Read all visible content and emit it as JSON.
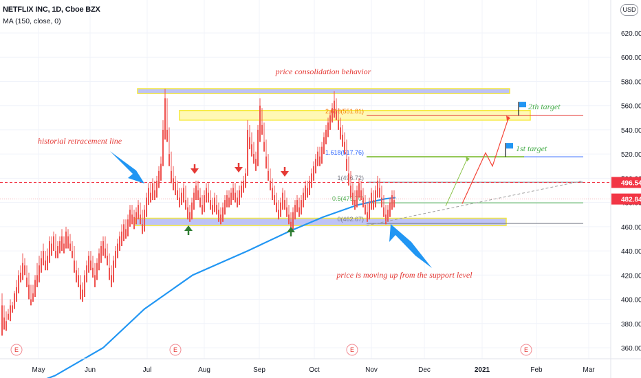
{
  "header": {
    "title": "NETFLIX INC, 1D, Cboe BZX",
    "indicator": "MA (150, close, 0)",
    "currency_button": "USD"
  },
  "chart_data": {
    "type": "candlestick",
    "price_axis": {
      "min": 350,
      "max": 630,
      "ticks": [
        "360.00",
        "380.00",
        "400.00",
        "420.00",
        "440.00",
        "460.00",
        "480.00",
        "500.00",
        "520.00",
        "540.00",
        "560.00",
        "580.00",
        "600.00",
        "620.00"
      ],
      "tick_values": [
        360,
        380,
        400,
        420,
        440,
        460,
        480,
        500,
        520,
        540,
        560,
        580,
        600,
        620
      ]
    },
    "time_axis": {
      "labels": [
        "May",
        "Jun",
        "Jul",
        "Aug",
        "Sep",
        "Oct",
        "Nov",
        "Dec",
        "2021",
        "Feb",
        "Mar"
      ],
      "bold_labels": [
        "2021"
      ]
    },
    "price_badges": [
      {
        "label": "496.54",
        "value": 496.54,
        "color": "#f23645"
      },
      {
        "label": "482.84",
        "value": 482.84,
        "color": "#f23645"
      }
    ],
    "fib_levels": [
      {
        "label": "2.618(551.81)",
        "value": 551.81,
        "color": "#f57c00"
      },
      {
        "label": "1.618(517.76)",
        "value": 517.76,
        "color": "#2962ff"
      },
      {
        "label": "1(496.72)",
        "value": 496.72,
        "color": "#787b86"
      },
      {
        "label": "0.5(479.70)",
        "value": 479.7,
        "color": "#4caf50"
      },
      {
        "label": "0(462.67)",
        "value": 462.67,
        "color": "#787b86"
      }
    ],
    "zones": [
      {
        "name": "top-range",
        "from": 570,
        "to": 574,
        "color": "#b3b8f5"
      },
      {
        "name": "upper-zone",
        "from": 548,
        "to": 556,
        "color": "#fff7a8"
      },
      {
        "name": "support-zone",
        "from": 461,
        "to": 467,
        "color": "#b3b8f5"
      }
    ],
    "annotations": [
      {
        "text": "price consolidation behavior",
        "color": "#e53935"
      },
      {
        "text": "historial retracement line",
        "color": "#e53935"
      },
      {
        "text": "price is moving up from the support level",
        "color": "#e53935"
      },
      {
        "text": "2th target",
        "color": "#4caf50"
      },
      {
        "text": "1st target",
        "color": "#4caf50"
      }
    ],
    "targets": [
      {
        "label": "1st target",
        "value": 517.76
      },
      {
        "label": "2th target",
        "value": 551.81
      }
    ],
    "events_label": "E",
    "colors": {
      "up": "#26a69a",
      "down": "#ef5350",
      "ma": "#2196f3"
    },
    "ma": {
      "name": "MA (150, close, 0)",
      "points": [
        [
          0,
          320
        ],
        [
          80,
          337
        ],
        [
          150,
          360
        ],
        [
          210,
          392
        ],
        [
          280,
          420
        ],
        [
          360,
          440
        ],
        [
          420,
          456
        ],
        [
          470,
          468
        ],
        [
          520,
          478
        ],
        [
          560,
          483
        ],
        [
          575,
          484
        ]
      ]
    },
    "candles": [
      [
        3,
        395,
        405,
        390,
        370
      ],
      [
        6,
        385,
        395,
        382,
        375
      ],
      [
        9,
        382,
        390,
        378,
        374
      ],
      [
        12,
        388,
        392,
        386,
        383
      ],
      [
        15,
        395,
        400,
        387,
        382
      ],
      [
        18,
        395,
        398,
        392,
        389
      ],
      [
        21,
        405,
        407,
        396,
        392
      ],
      [
        24,
        410,
        416,
        404,
        398
      ],
      [
        27,
        420,
        424,
        410,
        405
      ],
      [
        30,
        422,
        428,
        418,
        414
      ],
      [
        33,
        430,
        438,
        420,
        416
      ],
      [
        36,
        428,
        434,
        424,
        420
      ],
      [
        39,
        418,
        428,
        414,
        410
      ],
      [
        42,
        412,
        422,
        406,
        400
      ],
      [
        45,
        400,
        412,
        396,
        395
      ],
      [
        48,
        405,
        412,
        402,
        398
      ],
      [
        51,
        416,
        420,
        405,
        402
      ],
      [
        54,
        420,
        430,
        414,
        410
      ],
      [
        57,
        428,
        436,
        418,
        414
      ],
      [
        60,
        434,
        440,
        426,
        422
      ],
      [
        63,
        440,
        446,
        432,
        428
      ],
      [
        66,
        432,
        440,
        428,
        424
      ],
      [
        69,
        436,
        442,
        428,
        424
      ],
      [
        72,
        448,
        452,
        434,
        430
      ],
      [
        75,
        446,
        452,
        440,
        436
      ],
      [
        78,
        452,
        456,
        444,
        440
      ],
      [
        81,
        440,
        454,
        436,
        434
      ],
      [
        84,
        444,
        448,
        438,
        434
      ],
      [
        87,
        448,
        452,
        442,
        438
      ],
      [
        90,
        452,
        458,
        445,
        440
      ],
      [
        93,
        446,
        452,
        442,
        438
      ],
      [
        96,
        456,
        460,
        446,
        442
      ],
      [
        99,
        452,
        458,
        446,
        442
      ],
      [
        102,
        446,
        454,
        444,
        440
      ],
      [
        105,
        440,
        448,
        436,
        434
      ],
      [
        108,
        432,
        444,
        426,
        422
      ],
      [
        111,
        424,
        432,
        420,
        414
      ],
      [
        114,
        420,
        426,
        414,
        410
      ],
      [
        117,
        412,
        420,
        406,
        400
      ],
      [
        120,
        408,
        414,
        402,
        398
      ],
      [
        123,
        420,
        424,
        406,
        402
      ],
      [
        126,
        428,
        432,
        418,
        414
      ],
      [
        129,
        436,
        440,
        426,
        422
      ],
      [
        132,
        432,
        440,
        428,
        424
      ],
      [
        135,
        426,
        436,
        422,
        418
      ],
      [
        138,
        420,
        430,
        414,
        410
      ],
      [
        141,
        430,
        434,
        420,
        416
      ],
      [
        144,
        438,
        442,
        428,
        424
      ],
      [
        147,
        444,
        448,
        434,
        430
      ],
      [
        150,
        448,
        452,
        440,
        436
      ],
      [
        153,
        442,
        452,
        438,
        434
      ],
      [
        156,
        436,
        446,
        432,
        428
      ],
      [
        159,
        426,
        438,
        420,
        416
      ],
      [
        162,
        420,
        428,
        414,
        410
      ],
      [
        165,
        432,
        436,
        418,
        414
      ],
      [
        168,
        440,
        444,
        430,
        426
      ],
      [
        171,
        446,
        450,
        438,
        434
      ],
      [
        174,
        452,
        456,
        444,
        440
      ],
      [
        177,
        456,
        462,
        448,
        444
      ],
      [
        180,
        462,
        466,
        452,
        448
      ],
      [
        183,
        458,
        466,
        454,
        450
      ],
      [
        186,
        466,
        470,
        456,
        452
      ],
      [
        189,
        474,
        478,
        464,
        460
      ],
      [
        192,
        470,
        478,
        466,
        462
      ],
      [
        195,
        468,
        474,
        462,
        458
      ],
      [
        198,
        472,
        476,
        466,
        462
      ],
      [
        201,
        478,
        482,
        470,
        466
      ],
      [
        204,
        470,
        480,
        466,
        462
      ],
      [
        207,
        462,
        474,
        458,
        454
      ],
      [
        210,
        474,
        478,
        460,
        456
      ],
      [
        213,
        484,
        488,
        472,
        468
      ],
      [
        216,
        492,
        496,
        482,
        478
      ],
      [
        219,
        488,
        496,
        484,
        480
      ],
      [
        222,
        496,
        500,
        486,
        482
      ],
      [
        225,
        490,
        498,
        486,
        482
      ],
      [
        228,
        498,
        502,
        488,
        484
      ],
      [
        231,
        506,
        510,
        496,
        492
      ],
      [
        234,
        512,
        518,
        502,
        498
      ],
      [
        237,
        540,
        548,
        514,
        510
      ],
      [
        240,
        566,
        574,
        538,
        532
      ],
      [
        243,
        540,
        566,
        536,
        530
      ],
      [
        246,
        520,
        542,
        516,
        510
      ],
      [
        249,
        506,
        522,
        500,
        496
      ],
      [
        252,
        500,
        510,
        494,
        490
      ],
      [
        255,
        496,
        502,
        492,
        486
      ],
      [
        258,
        490,
        498,
        486,
        482
      ],
      [
        261,
        484,
        492,
        480,
        476
      ],
      [
        264,
        488,
        492,
        482,
        478
      ],
      [
        267,
        492,
        496,
        484,
        480
      ],
      [
        270,
        482,
        494,
        478,
        474
      ],
      [
        273,
        476,
        484,
        472,
        466
      ],
      [
        276,
        472,
        478,
        468,
        464
      ],
      [
        279,
        480,
        484,
        470,
        466
      ],
      [
        282,
        488,
        492,
        478,
        474
      ],
      [
        285,
        494,
        498,
        486,
        482
      ],
      [
        288,
        490,
        498,
        486,
        482
      ],
      [
        291,
        484,
        492,
        480,
        476
      ],
      [
        294,
        478,
        486,
        474,
        470
      ],
      [
        297,
        486,
        490,
        476,
        472
      ],
      [
        300,
        492,
        496,
        484,
        480
      ],
      [
        303,
        488,
        496,
        484,
        480
      ],
      [
        306,
        482,
        490,
        478,
        474
      ],
      [
        309,
        478,
        484,
        474,
        470
      ],
      [
        312,
        484,
        488,
        476,
        472
      ],
      [
        315,
        478,
        486,
        474,
        470
      ],
      [
        318,
        474,
        480,
        468,
        464
      ],
      [
        321,
        470,
        476,
        466,
        462
      ],
      [
        324,
        476,
        480,
        468,
        464
      ],
      [
        327,
        482,
        486,
        474,
        470
      ],
      [
        330,
        486,
        490,
        480,
        476
      ],
      [
        333,
        484,
        490,
        480,
        476
      ],
      [
        336,
        488,
        492,
        482,
        478
      ],
      [
        339,
        492,
        496,
        486,
        482
      ],
      [
        342,
        488,
        496,
        484,
        480
      ],
      [
        345,
        484,
        490,
        480,
        476
      ],
      [
        348,
        490,
        494,
        482,
        478
      ],
      [
        351,
        494,
        498,
        488,
        484
      ],
      [
        354,
        498,
        502,
        492,
        488
      ],
      [
        357,
        504,
        508,
        496,
        492
      ],
      [
        360,
        540,
        548,
        506,
        502
      ],
      [
        363,
        534,
        544,
        528,
        524
      ],
      [
        366,
        528,
        538,
        522,
        518
      ],
      [
        369,
        520,
        530,
        516,
        512
      ],
      [
        372,
        516,
        522,
        510,
        506
      ],
      [
        375,
        540,
        544,
        514,
        510
      ],
      [
        378,
        560,
        566,
        534,
        530
      ],
      [
        381,
        544,
        558,
        540,
        536
      ],
      [
        384,
        530,
        546,
        526,
        522
      ],
      [
        387,
        518,
        532,
        512,
        508
      ],
      [
        390,
        506,
        520,
        502,
        498
      ],
      [
        393,
        498,
        508,
        494,
        490
      ],
      [
        396,
        492,
        500,
        486,
        482
      ],
      [
        399,
        486,
        494,
        482,
        478
      ],
      [
        402,
        480,
        488,
        476,
        472
      ],
      [
        405,
        474,
        482,
        470,
        466
      ],
      [
        408,
        480,
        484,
        472,
        468
      ],
      [
        411,
        488,
        492,
        478,
        474
      ],
      [
        414,
        482,
        490,
        478,
        474
      ],
      [
        417,
        476,
        484,
        472,
        468
      ],
      [
        420,
        470,
        478,
        466,
        462
      ],
      [
        423,
        464,
        472,
        460,
        456
      ],
      [
        426,
        472,
        476,
        462,
        458
      ],
      [
        429,
        478,
        482,
        470,
        466
      ],
      [
        432,
        482,
        486,
        476,
        472
      ],
      [
        435,
        476,
        484,
        472,
        468
      ],
      [
        438,
        482,
        486,
        474,
        470
      ],
      [
        441,
        488,
        492,
        480,
        476
      ],
      [
        444,
        494,
        498,
        486,
        482
      ],
      [
        447,
        492,
        498,
        488,
        484
      ],
      [
        450,
        498,
        502,
        490,
        486
      ],
      [
        453,
        504,
        508,
        496,
        492
      ],
      [
        456,
        510,
        514,
        502,
        498
      ],
      [
        459,
        516,
        520,
        508,
        504
      ],
      [
        462,
        522,
        526,
        514,
        510
      ],
      [
        465,
        518,
        526,
        514,
        510
      ],
      [
        468,
        526,
        530,
        516,
        512
      ],
      [
        471,
        534,
        538,
        524,
        520
      ],
      [
        474,
        540,
        544,
        532,
        528
      ],
      [
        477,
        546,
        550,
        538,
        534
      ],
      [
        480,
        552,
        556,
        544,
        540
      ],
      [
        483,
        558,
        562,
        550,
        546
      ],
      [
        486,
        564,
        572,
        554,
        550
      ],
      [
        489,
        556,
        566,
        552,
        548
      ],
      [
        492,
        548,
        558,
        544,
        540
      ],
      [
        495,
        542,
        550,
        536,
        532
      ],
      [
        498,
        536,
        544,
        530,
        526
      ],
      [
        501,
        530,
        538,
        524,
        520
      ],
      [
        504,
        516,
        532,
        510,
        506
      ],
      [
        507,
        504,
        518,
        498,
        494
      ],
      [
        510,
        494,
        506,
        488,
        484
      ],
      [
        513,
        488,
        496,
        482,
        478
      ],
      [
        516,
        482,
        490,
        478,
        474
      ],
      [
        519,
        490,
        494,
        480,
        476
      ],
      [
        522,
        496,
        500,
        488,
        484
      ],
      [
        525,
        490,
        498,
        486,
        482
      ],
      [
        528,
        484,
        492,
        480,
        476
      ],
      [
        531,
        478,
        486,
        474,
        470
      ],
      [
        534,
        472,
        480,
        468,
        464
      ],
      [
        537,
        480,
        484,
        470,
        466
      ],
      [
        540,
        488,
        492,
        478,
        474
      ],
      [
        543,
        482,
        490,
        478,
        474
      ],
      [
        546,
        490,
        494,
        480,
        476
      ],
      [
        549,
        498,
        502,
        488,
        484
      ],
      [
        552,
        492,
        500,
        488,
        484
      ],
      [
        555,
        484,
        494,
        480,
        476
      ],
      [
        558,
        476,
        486,
        472,
        468
      ],
      [
        561,
        470,
        478,
        466,
        462
      ],
      [
        564,
        474,
        478,
        468,
        464
      ],
      [
        567,
        480,
        484,
        472,
        468
      ],
      [
        570,
        486,
        490,
        478,
        474
      ],
      [
        573,
        482,
        490,
        478,
        476
      ]
    ]
  }
}
